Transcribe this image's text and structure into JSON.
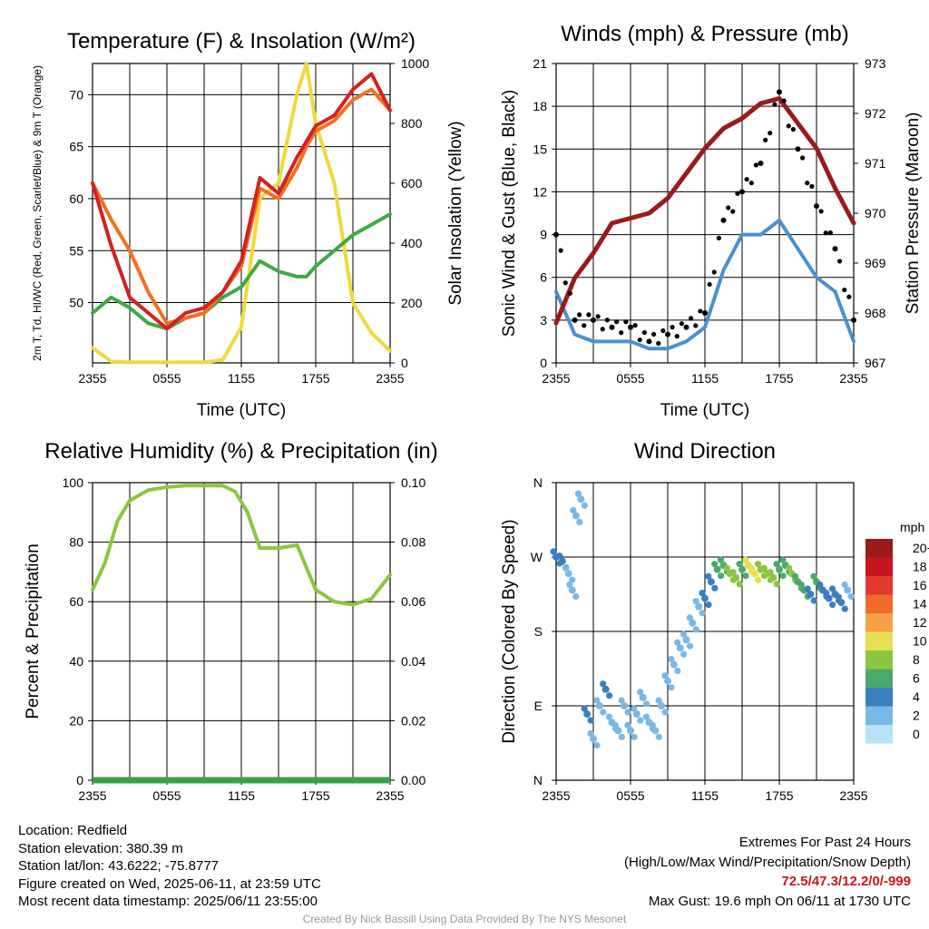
{
  "footer": {
    "location": "Location: Redfield",
    "elevation": "Station elevation: 380.39 m",
    "latlon": "Station lat/lon: 43.6222; -75.8777",
    "created": "Figure created on Wed, 2025-06-11, at 23:59 UTC",
    "recent": "Most recent data timestamp: 2025/06/11 23:55:00",
    "extremes_title": "Extremes For Past 24 Hours",
    "extremes_desc": "(High/Low/Max Wind/Precipitation/Snow Depth)",
    "extremes_values": "72.5/47.3/12.2/0/-999",
    "max_gust": "Max Gust: 19.6 mph On 06/11 at 1730 UTC",
    "credit": "Created By Nick Bassill Using Data Provided By The NYS Mesonet"
  },
  "chart_data": [
    {
      "type": "line",
      "title": "Temperature (F) & Insolation (W/m²)",
      "xlabel": "Time (UTC)",
      "ylabel_left": "2m T, Td, HI/WC (Red, Green, Scarlet/Blue) & 9m T (Orange)",
      "ylabel_right": "Solar Insolation (Yellow)",
      "x_ticks": [
        "2355",
        "0555",
        "1155",
        "1755",
        "2355"
      ],
      "x_hours": [
        0,
        1.5,
        3,
        4.5,
        6,
        7.5,
        9,
        10.5,
        12,
        13.5,
        15,
        16.5,
        17.25,
        18,
        19.5,
        21,
        22.5,
        24
      ],
      "y_ticks_left": [
        50,
        55,
        60,
        65,
        70
      ],
      "ylim_left": [
        44.2,
        73.0
      ],
      "y_ticks_right": [
        0,
        200,
        400,
        600,
        800,
        1000
      ],
      "ylim_right": [
        0,
        1000
      ],
      "grid": true,
      "series": [
        {
          "axis": "left",
          "color": "#d62020",
          "values": [
            61.5,
            55.5,
            50.5,
            49,
            47.5,
            49,
            49.5,
            51,
            54,
            62,
            60.5,
            64,
            65.5,
            67,
            68,
            70.5,
            72,
            68.5
          ]
        },
        {
          "axis": "left",
          "color": "#f07020",
          "values": [
            61.5,
            58,
            55,
            51,
            48,
            48.5,
            49,
            51,
            53.5,
            61,
            60,
            63,
            65,
            66.5,
            67.5,
            69.5,
            70.5,
            68.5
          ]
        },
        {
          "axis": "left",
          "color": "#40aa40",
          "values": [
            49,
            50.5,
            49.5,
            48,
            47.5,
            48.5,
            49,
            50.5,
            51.5,
            54,
            53,
            52.5,
            52.5,
            53.5,
            55,
            56.5,
            57.5,
            58.5
          ]
        },
        {
          "axis": "right",
          "color": "#f0d840",
          "values": [
            50,
            5,
            2,
            2,
            2,
            2,
            2,
            10,
            120,
            550,
            600,
            900,
            1000,
            800,
            600,
            200,
            100,
            40
          ]
        }
      ]
    },
    {
      "type": "line",
      "title": "Winds (mph) & Pressure (mb)",
      "xlabel": "Time (UTC)",
      "ylabel_left": "Sonic Wind & Gust (Blue, Black)",
      "ylabel_right": "Station Pressure (Maroon)",
      "x_ticks": [
        "2355",
        "0555",
        "1155",
        "1755",
        "2355"
      ],
      "x_hours": [
        0,
        1.5,
        3,
        4.5,
        6,
        7.5,
        9,
        10.5,
        12,
        13.5,
        15,
        16.5,
        18,
        19.5,
        21,
        22.5,
        24
      ],
      "y_ticks_left": [
        0,
        3,
        6,
        9,
        12,
        15,
        18,
        21
      ],
      "ylim_left": [
        0,
        21
      ],
      "y_ticks_right": [
        967,
        968,
        969,
        970,
        971,
        972,
        973
      ],
      "ylim_right": [
        967,
        973
      ],
      "grid": true,
      "series": [
        {
          "axis": "left",
          "color": "#4a90d0",
          "values": [
            5,
            2,
            1.5,
            1.5,
            1.5,
            1,
            1,
            1.5,
            2.5,
            6.5,
            9,
            9,
            10,
            8,
            6,
            5,
            1.5
          ]
        },
        {
          "axis": "left",
          "color": "#000000",
          "marker": "dot",
          "values": [
            9,
            3,
            3,
            2.5,
            2.5,
            1.5,
            2,
            2.5,
            3.5,
            10,
            12,
            14,
            19,
            15,
            11,
            8,
            3
          ]
        },
        {
          "axis": "right",
          "color": "#9b1a1a",
          "values": [
            967.8,
            968.7,
            969.2,
            969.8,
            969.9,
            970.0,
            970.3,
            970.8,
            971.3,
            971.7,
            971.9,
            972.2,
            972.3,
            971.8,
            971.3,
            970.5,
            969.8
          ]
        }
      ]
    },
    {
      "type": "line",
      "title": "Relative Humidity (%) & Precipitation (in)",
      "xlabel": "",
      "ylabel_left": "Percent & Precipitation",
      "x_ticks": [
        "2355",
        "0555",
        "1155",
        "1755",
        "2355"
      ],
      "x_hours": [
        0,
        1,
        2,
        3,
        4.5,
        6,
        7.5,
        9,
        10.5,
        11.5,
        12.5,
        13.5,
        15,
        16.5,
        18,
        19.5,
        21,
        22.5,
        24
      ],
      "y_ticks_left": [
        0,
        20,
        40,
        60,
        80,
        100
      ],
      "ylim_left": [
        0,
        100
      ],
      "y_ticks_right": [
        "0.00",
        "0.02",
        "0.04",
        "0.06",
        "0.08",
        "0.10"
      ],
      "ylim_right": [
        0,
        0.1
      ],
      "grid": true,
      "series": [
        {
          "axis": "left",
          "color": "#8cc63f",
          "values": [
            64,
            73,
            87,
            94,
            97.5,
            98.5,
            99,
            99,
            99,
            97,
            90,
            78,
            78,
            79,
            64,
            60,
            59,
            61,
            69
          ]
        },
        {
          "axis": "right",
          "color": "#3aa04a",
          "values": [
            0,
            0,
            0,
            0,
            0,
            0,
            0,
            0,
            0,
            0,
            0,
            0,
            0,
            0,
            0,
            0,
            0,
            0,
            0
          ]
        }
      ]
    },
    {
      "type": "scatter",
      "title": "Wind Direction",
      "ylabel_left": "Direction (Colored By Speed)",
      "x_ticks": [
        "2355",
        "0555",
        "1155",
        "1755",
        "2355"
      ],
      "y_ticks": [
        "N",
        "E",
        "S",
        "W",
        "N"
      ],
      "ylim": [
        0,
        360
      ],
      "legend_title": "mph",
      "legend_labels": [
        "20+",
        "18",
        "16",
        "14",
        "12",
        "10",
        "8",
        "6",
        "4",
        "2",
        "0"
      ],
      "legend_colors": [
        "#9b1a1a",
        "#c8141e",
        "#e23a2e",
        "#f26a2a",
        "#f7a048",
        "#e8e04f",
        "#8cc63f",
        "#4aaa6a",
        "#3a80c0",
        "#7ab8e8",
        "#b8e2f8"
      ],
      "points_hours": [
        0,
        0.5,
        1,
        1.3,
        1.6,
        2,
        2.5,
        3,
        3.5,
        4,
        4.5,
        5,
        5.5,
        6,
        6.5,
        7,
        7.5,
        8,
        8.5,
        9,
        9.5,
        10,
        10.5,
        11,
        11.5,
        12,
        12.5,
        13,
        13.5,
        14,
        14.5,
        15,
        15.5,
        16,
        16.5,
        17,
        17.5,
        18,
        18.5,
        19,
        19.5,
        20,
        20.5,
        21,
        21.5,
        22,
        22.5,
        23,
        23.5
      ],
      "points_dir": [
        270,
        265,
        250,
        230,
        320,
        340,
        80,
        50,
        90,
        110,
        70,
        60,
        90,
        60,
        80,
        100,
        70,
        60,
        90,
        120,
        140,
        160,
        170,
        190,
        210,
        220,
        240,
        255,
        260,
        250,
        245,
        255,
        260,
        250,
        255,
        250,
        245,
        255,
        260,
        250,
        240,
        230,
        225,
        240,
        230,
        220,
        225,
        215,
        230
      ],
      "points_speed": [
        4,
        3,
        2,
        1,
        1,
        1,
        3,
        2,
        2,
        3,
        2,
        1,
        2,
        2,
        1,
        2,
        1,
        2,
        1,
        2,
        1,
        1,
        1,
        1,
        2,
        3,
        4,
        5,
        6,
        7,
        8,
        6,
        9,
        10,
        8,
        7,
        8,
        6,
        5,
        7,
        6,
        5,
        4,
        5,
        4,
        4,
        3,
        3,
        2
      ]
    }
  ]
}
